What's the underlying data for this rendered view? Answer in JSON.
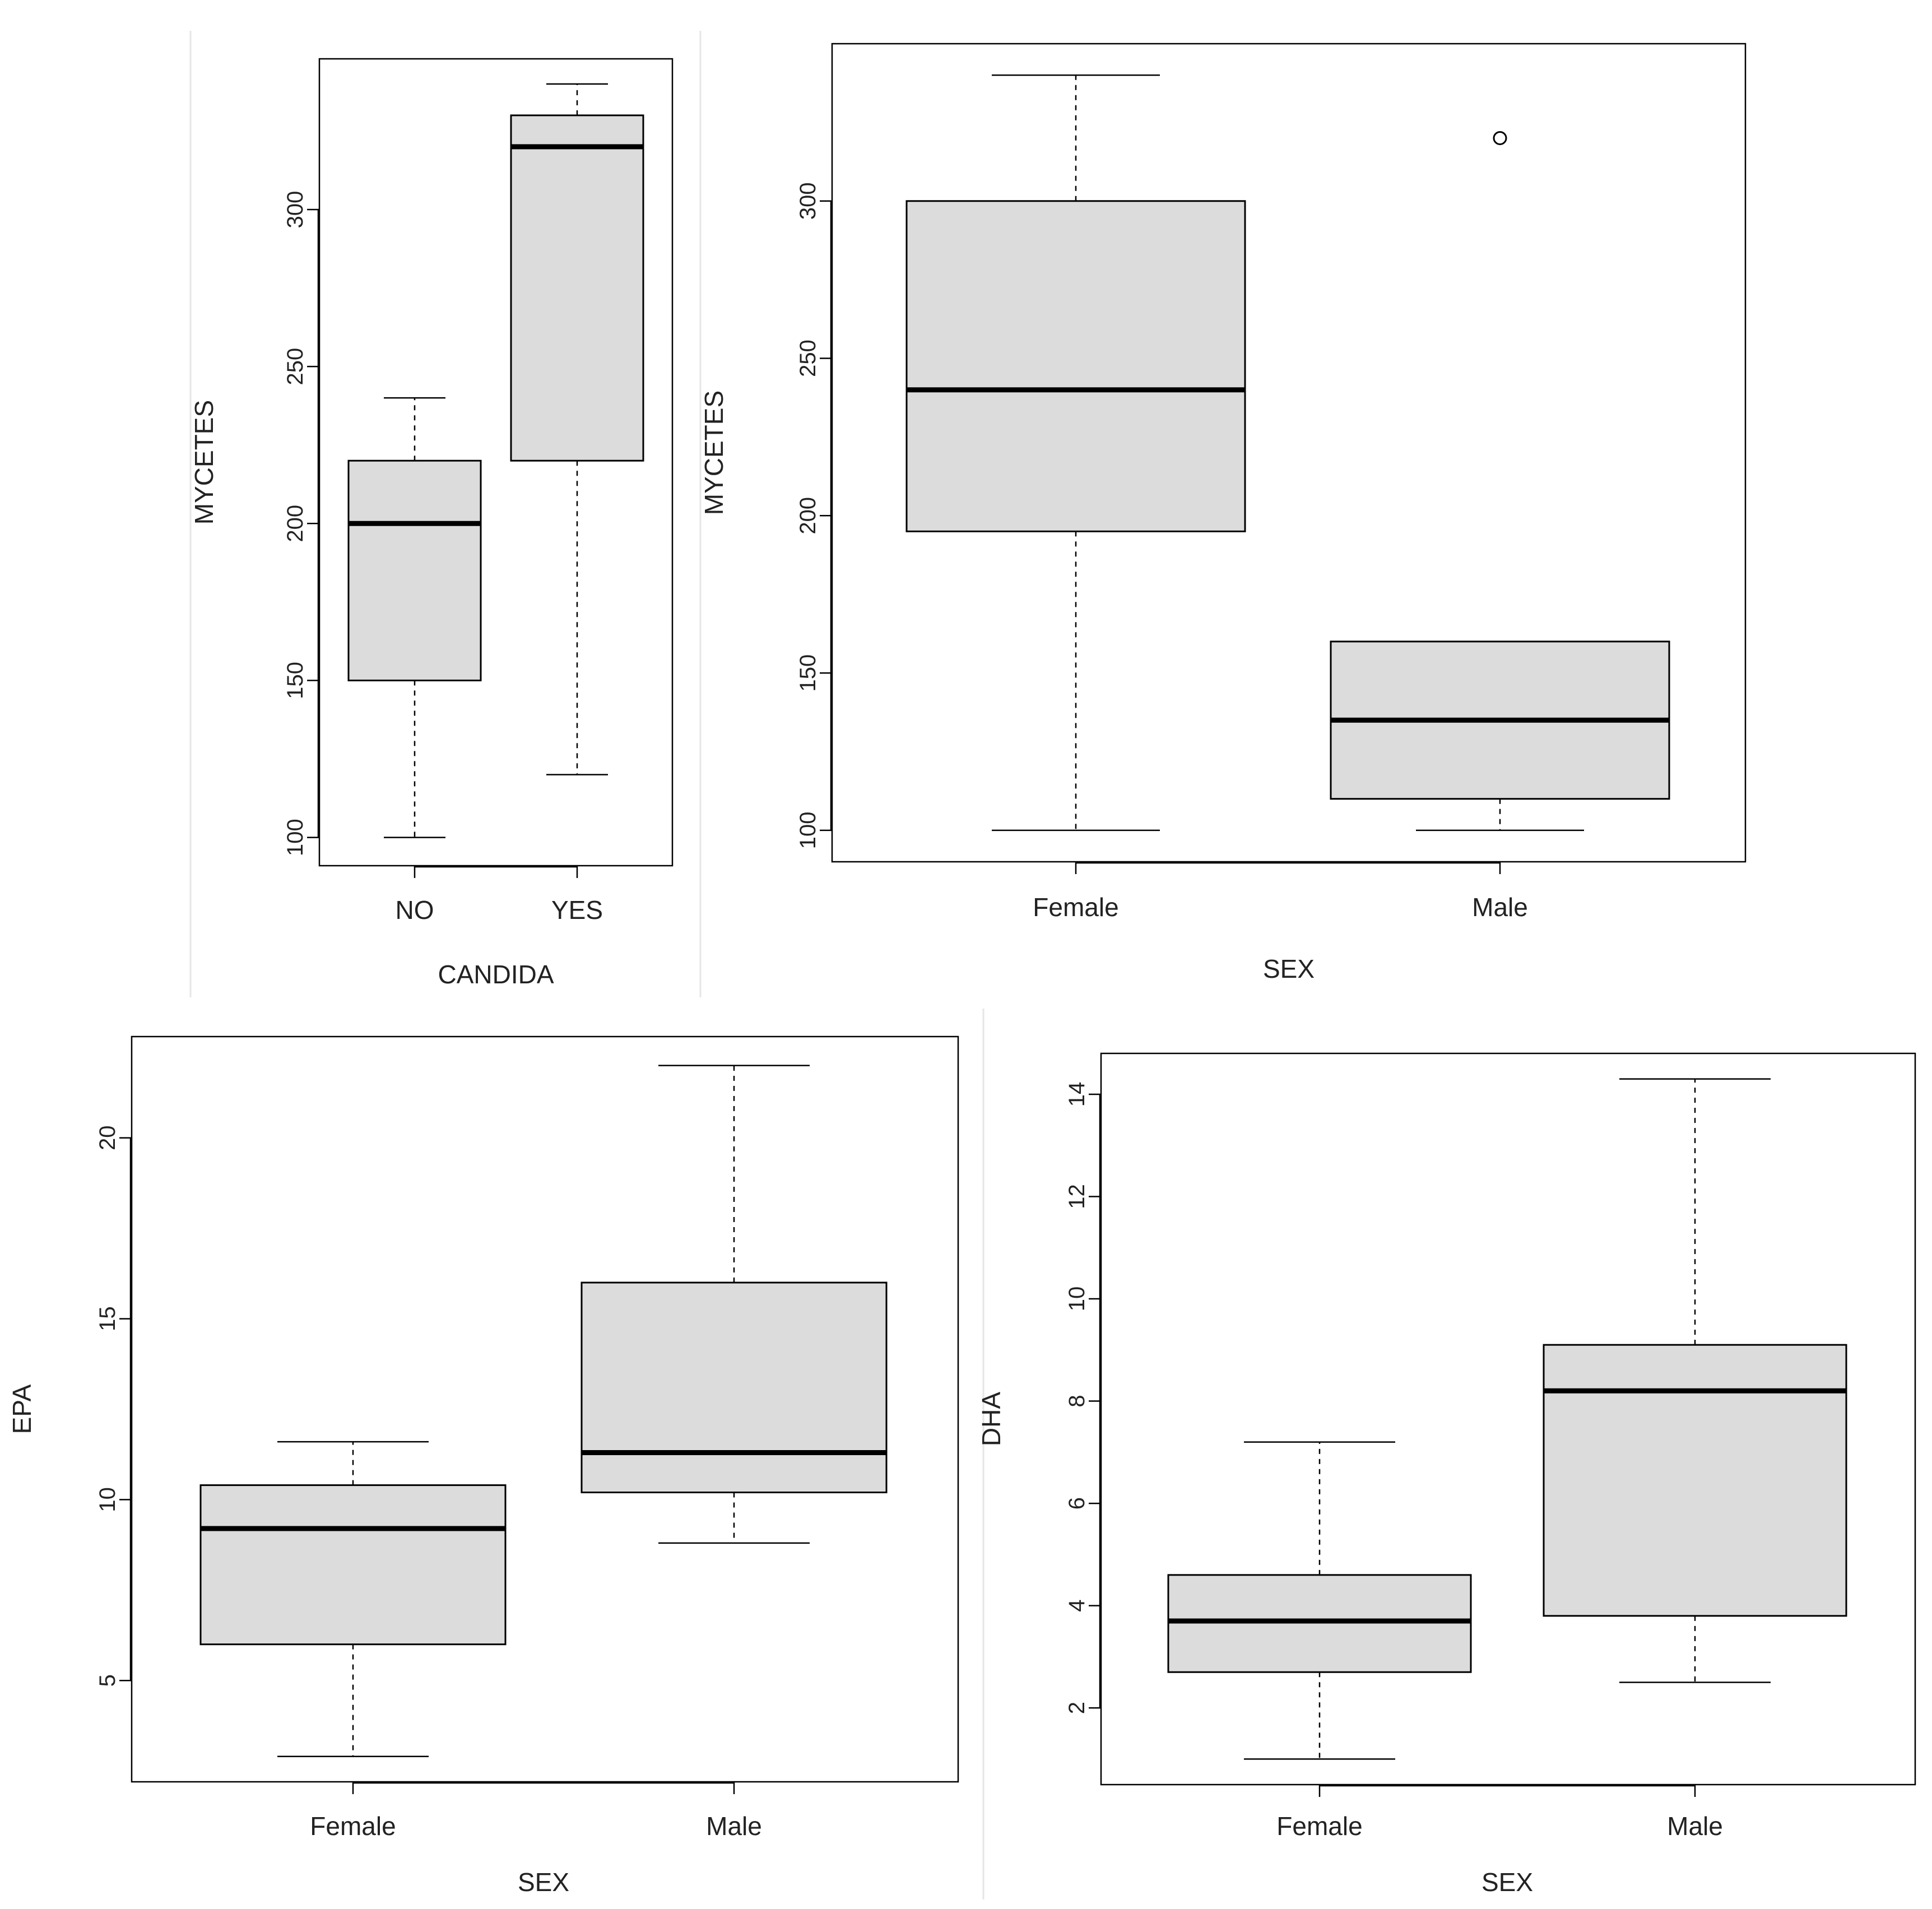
{
  "chart_data": [
    {
      "type": "box",
      "xlabel": "CANDIDA",
      "ylabel": "MYCETES",
      "categories": [
        "NO",
        "YES"
      ],
      "ylim": [
        91,
        348
      ],
      "yticks": [
        100,
        150,
        200,
        250,
        300
      ],
      "ytick_labels": [
        "100",
        "150",
        "200",
        "250",
        "300"
      ],
      "boxes": [
        {
          "category": "NO",
          "min": 100,
          "q1": 150,
          "median": 200,
          "q3": 220,
          "max": 240,
          "outliers": []
        },
        {
          "category": "YES",
          "min": 120,
          "q1": 220,
          "median": 320,
          "q3": 330,
          "max": 340,
          "outliers": []
        }
      ]
    },
    {
      "type": "box",
      "xlabel": "SEX",
      "ylabel": "MYCETES",
      "categories": [
        "Female",
        "Male"
      ],
      "ylim": [
        90,
        350
      ],
      "yticks": [
        100,
        150,
        200,
        250,
        300
      ],
      "ytick_labels": [
        "100",
        "150",
        "200",
        "250",
        "300"
      ],
      "boxes": [
        {
          "category": "Female",
          "min": 100,
          "q1": 195,
          "median": 240,
          "q3": 300,
          "max": 340,
          "outliers": []
        },
        {
          "category": "Male",
          "min": 100,
          "q1": 110,
          "median": 135,
          "q3": 160,
          "max": 160,
          "outliers": [
            320
          ]
        }
      ]
    },
    {
      "type": "box",
      "xlabel": "SEX",
      "ylabel": "EPA",
      "categories": [
        "Female",
        "Male"
      ],
      "ylim": [
        2.2,
        22.8
      ],
      "yticks": [
        5,
        10,
        15,
        20
      ],
      "ytick_labels": [
        "5",
        "10",
        "15",
        "20"
      ],
      "boxes": [
        {
          "category": "Female",
          "min": 2.9,
          "q1": 6.0,
          "median": 9.2,
          "q3": 10.4,
          "max": 11.6,
          "outliers": []
        },
        {
          "category": "Male",
          "min": 8.8,
          "q1": 10.2,
          "median": 11.3,
          "q3": 16.0,
          "max": 22.0,
          "outliers": []
        }
      ]
    },
    {
      "type": "box",
      "xlabel": "SEX",
      "ylabel": "DHA",
      "categories": [
        "Female",
        "Male"
      ],
      "ylim": [
        0.5,
        14.8
      ],
      "yticks": [
        2,
        4,
        6,
        8,
        10,
        12,
        14
      ],
      "ytick_labels": [
        "2",
        "4",
        "6",
        "8",
        "10",
        "12",
        "14"
      ],
      "boxes": [
        {
          "category": "Female",
          "min": 1.0,
          "q1": 2.7,
          "median": 3.7,
          "q3": 4.6,
          "max": 7.2,
          "outliers": []
        },
        {
          "category": "Male",
          "min": 2.5,
          "q1": 3.8,
          "median": 8.2,
          "q3": 9.1,
          "max": 14.3,
          "outliers": []
        }
      ]
    }
  ]
}
